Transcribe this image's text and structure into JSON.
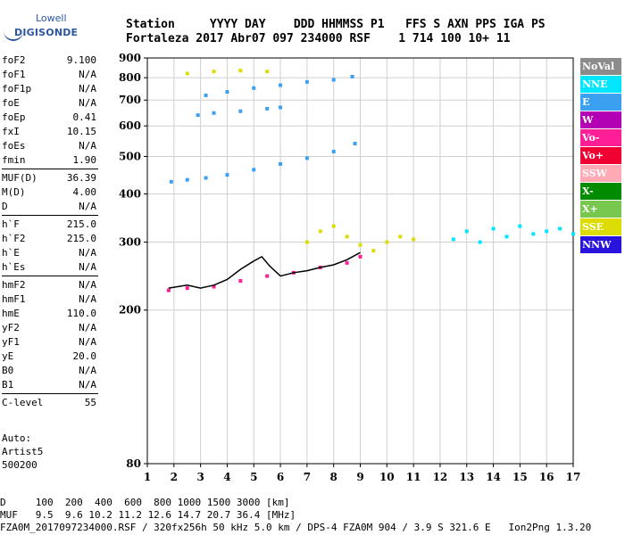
{
  "logo": {
    "line1": "Lowell",
    "line2": "DIGISONDE"
  },
  "header": {
    "line1": "Station     YYYY DAY    DDD HHMMSS P1   FFS S AXN PPS IGA PS",
    "line2": "Fortaleza 2017 Abr07 097 234000 RSF    1 714 100 10+ 11"
  },
  "params": [
    {
      "group": [
        {
          "key": "foF2",
          "value": "9.100"
        },
        {
          "key": "foF1",
          "value": "N/A"
        },
        {
          "key": "foF1p",
          "value": "N/A"
        },
        {
          "key": "foE",
          "value": "N/A"
        },
        {
          "key": "foEp",
          "value": "0.41"
        },
        {
          "key": "fxI",
          "value": "10.15"
        },
        {
          "key": "foEs",
          "value": "N/A"
        },
        {
          "key": "fmin",
          "value": "1.90"
        }
      ]
    },
    {
      "group": [
        {
          "key": "MUF(D)",
          "value": "36.39"
        },
        {
          "key": "M(D)",
          "value": "4.00"
        },
        {
          "key": "D",
          "value": "N/A"
        }
      ]
    },
    {
      "group": [
        {
          "key": "h`F",
          "value": "215.0"
        },
        {
          "key": "h`F2",
          "value": "215.0"
        },
        {
          "key": "h`E",
          "value": "N/A"
        },
        {
          "key": "h`Es",
          "value": "N/A"
        }
      ]
    },
    {
      "group": [
        {
          "key": "hmF2",
          "value": "N/A"
        },
        {
          "key": "hmF1",
          "value": "N/A"
        },
        {
          "key": "hmE",
          "value": "110.0"
        },
        {
          "key": "yF2",
          "value": "N/A"
        },
        {
          "key": "yF1",
          "value": "N/A"
        },
        {
          "key": "yE",
          "value": "20.0"
        },
        {
          "key": "B0",
          "value": "N/A"
        },
        {
          "key": "B1",
          "value": "N/A"
        }
      ]
    },
    {
      "group": [
        {
          "key": "C-level",
          "value": "55"
        }
      ]
    }
  ],
  "auto": {
    "line1": "Auto:",
    "line2": "Artist5",
    "line3": "500200"
  },
  "legend": [
    {
      "label": "NoVal",
      "color": "#8c8c8c"
    },
    {
      "label": "NNE",
      "color": "#00e6ff"
    },
    {
      "label": "E",
      "color": "#3ca0f0"
    },
    {
      "label": "W",
      "color": "#b400b4"
    },
    {
      "label": "Vo-",
      "color": "#ff1e96"
    },
    {
      "label": "Vo+",
      "color": "#f00032"
    },
    {
      "label": "SSW",
      "color": "#ffaab4"
    },
    {
      "label": "X-",
      "color": "#008c00"
    },
    {
      "label": "X+",
      "color": "#78c850"
    },
    {
      "label": "SSE",
      "color": "#dcdc00"
    },
    {
      "label": "NNW",
      "color": "#2814dc"
    }
  ],
  "footer": {
    "line1": "D     100  200  400  600  800 1000 1500 3000 [km]",
    "line2": "MUF   9.5  9.6 10.2 11.2 12.6 14.7 20.7 36.4 [MHz]",
    "line3": "FZA0M_2017097234000.RSF / 320fx256h 50 kHz 5.0 km / DPS-4 FZA0M 904 / 3.9 S 321.6 E   Ion2Png 1.3.20"
  },
  "chart_data": {
    "type": "scatter",
    "xlabel": "",
    "ylabel": "",
    "xlim": [
      1,
      17
    ],
    "ylim": [
      80,
      900
    ],
    "xticks": [
      1,
      2,
      3,
      4,
      5,
      6,
      7,
      8,
      9,
      10,
      11,
      12,
      13,
      14,
      15,
      16,
      17
    ],
    "yticks": [
      80,
      200,
      300,
      400,
      500,
      600,
      700,
      800,
      900
    ],
    "y_scale": "log",
    "grid": true,
    "series": [
      {
        "color": "#3ca0f0",
        "points": [
          [
            1.9,
            430
          ],
          [
            2.5,
            435
          ],
          [
            3.2,
            440
          ],
          [
            4.0,
            448
          ],
          [
            5.0,
            462
          ],
          [
            6.0,
            478
          ],
          [
            7.0,
            495
          ],
          [
            8.0,
            515
          ],
          [
            8.8,
            540
          ]
        ]
      },
      {
        "color": "#3ca0f0",
        "points": [
          [
            3.2,
            720
          ],
          [
            4.0,
            735
          ],
          [
            5.0,
            752
          ],
          [
            6.0,
            765
          ],
          [
            7.0,
            780
          ],
          [
            8.0,
            790
          ],
          [
            8.7,
            805
          ]
        ]
      },
      {
        "color": "#3ca0f0",
        "points": [
          [
            2.9,
            640
          ],
          [
            3.5,
            648
          ],
          [
            4.5,
            655
          ],
          [
            5.5,
            665
          ],
          [
            6.0,
            670
          ]
        ]
      },
      {
        "color": "#dcdc00",
        "points": [
          [
            2.5,
            820
          ],
          [
            3.5,
            830
          ],
          [
            4.5,
            835
          ],
          [
            5.5,
            830
          ]
        ]
      },
      {
        "color": "#ff1e96",
        "points": [
          [
            1.8,
            225
          ],
          [
            2.5,
            228
          ],
          [
            3.5,
            230
          ],
          [
            4.5,
            238
          ],
          [
            5.5,
            245
          ],
          [
            6.5,
            250
          ],
          [
            7.5,
            258
          ],
          [
            8.5,
            265
          ],
          [
            9.0,
            275
          ]
        ]
      },
      {
        "color": "#dcdc00",
        "points": [
          [
            7.0,
            300
          ],
          [
            7.5,
            320
          ],
          [
            8.0,
            330
          ],
          [
            8.5,
            310
          ],
          [
            9.0,
            295
          ],
          [
            9.5,
            285
          ],
          [
            10.0,
            300
          ],
          [
            10.5,
            310
          ],
          [
            11.0,
            305
          ]
        ]
      },
      {
        "color": "#00e6ff",
        "points": [
          [
            12.5,
            305
          ],
          [
            13.0,
            320
          ],
          [
            13.5,
            300
          ],
          [
            14.0,
            325
          ],
          [
            14.5,
            310
          ],
          [
            15.0,
            330
          ],
          [
            15.5,
            315
          ],
          [
            16.0,
            320
          ],
          [
            16.5,
            325
          ],
          [
            17.0,
            315
          ]
        ]
      }
    ],
    "trace": {
      "color": "#000000",
      "points": [
        [
          1.8,
          228
        ],
        [
          2.5,
          232
        ],
        [
          3.0,
          228
        ],
        [
          3.5,
          232
        ],
        [
          4.0,
          240
        ],
        [
          4.5,
          255
        ],
        [
          5.0,
          268
        ],
        [
          5.3,
          275
        ],
        [
          5.6,
          260
        ],
        [
          6.0,
          245
        ],
        [
          6.5,
          250
        ],
        [
          7.0,
          253
        ],
        [
          7.5,
          258
        ],
        [
          8.0,
          262
        ],
        [
          8.5,
          270
        ],
        [
          9.0,
          282
        ]
      ]
    }
  }
}
